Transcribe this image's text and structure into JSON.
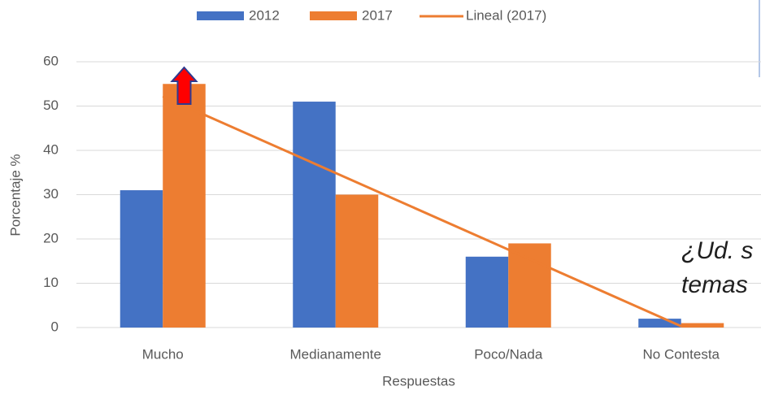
{
  "chart_data": {
    "type": "bar",
    "categories": [
      "Mucho",
      "Medianamente",
      "Poco/Nada",
      "No Contesta"
    ],
    "series": [
      {
        "name": "2012",
        "color": "#4472c4",
        "values": [
          31,
          51,
          16,
          2
        ]
      },
      {
        "name": "2017",
        "color": "#ed7d31",
        "values": [
          55,
          30,
          19,
          1
        ]
      }
    ],
    "trendline_label": "Lineal (2017)",
    "trendline_series": 1,
    "ylabel": "Porcentaje %",
    "xlabel": "Respuestas",
    "ylim": [
      0,
      60
    ],
    "yticks": [
      0,
      10,
      20,
      30,
      40,
      50,
      60
    ],
    "grid": true,
    "legend": "top",
    "annotations": [
      "¿Ud. s",
      "temas"
    ]
  }
}
